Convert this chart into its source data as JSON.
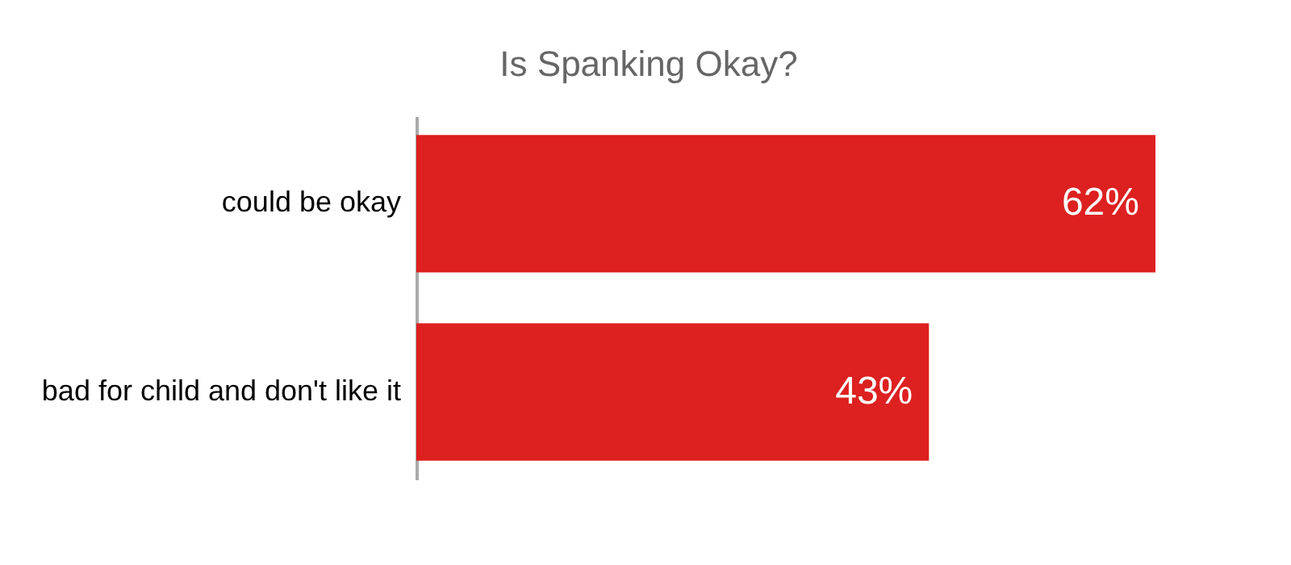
{
  "chart_data": {
    "type": "bar",
    "orientation": "horizontal",
    "title": "Is Spanking Okay?",
    "categories": [
      "could be okay",
      "bad for child and don't like it"
    ],
    "values": [
      62,
      43
    ],
    "color": "#dd2020",
    "value_labels": [
      "62%",
      "43%"
    ]
  }
}
